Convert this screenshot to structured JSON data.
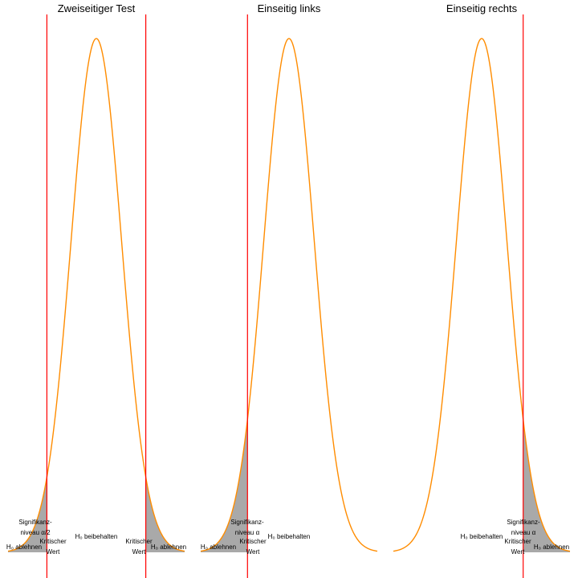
{
  "chart_data": [
    {
      "type": "area",
      "title": "Zweiseitiger Test",
      "distribution": "normal",
      "x_range": [
        -3.5,
        3.5
      ],
      "critical_values": [
        -1.96,
        1.96
      ],
      "rejection_regions": [
        "lower",
        "upper"
      ],
      "annotations": {
        "left_reject": "H₀ ablehnen",
        "right_reject": "H₀ ablehnen",
        "keep": "H₀ beibehalten",
        "significance_line1": "Signifikanz-",
        "significance_line2": "niveau α/2",
        "critical_left_line1": "Kritischer",
        "critical_left_line2": "Wert",
        "critical_right_line1": "Kritischer",
        "critical_right_line2": "Wert"
      }
    },
    {
      "type": "area",
      "title": "Einseitig links",
      "distribution": "normal",
      "x_range": [
        -3.5,
        3.5
      ],
      "critical_values": [
        -1.645
      ],
      "rejection_regions": [
        "lower"
      ],
      "annotations": {
        "left_reject": "H₀ ablehnen",
        "keep": "H₀ beibehalten",
        "significance_line1": "Signifikanz-",
        "significance_line2": "niveau α",
        "critical_line1": "Kritischer",
        "critical_line2": "Wert"
      }
    },
    {
      "type": "area",
      "title": "Einseitig rechts",
      "distribution": "normal",
      "x_range": [
        -3.5,
        3.5
      ],
      "critical_values": [
        1.645
      ],
      "rejection_regions": [
        "upper"
      ],
      "annotations": {
        "right_reject": "H₀ ablehnen",
        "keep": "H₀ beibehalten",
        "significance_line1": "Signifikanz-",
        "significance_line2": "niveau α",
        "critical_line1": "Kritischer",
        "critical_line2": "Wert"
      }
    }
  ],
  "colors": {
    "curve": "#ff8c00",
    "critical_line": "#ff0000",
    "rejection_fill": "#a9a9a9",
    "text": "#000000",
    "background": "#ffffff"
  }
}
